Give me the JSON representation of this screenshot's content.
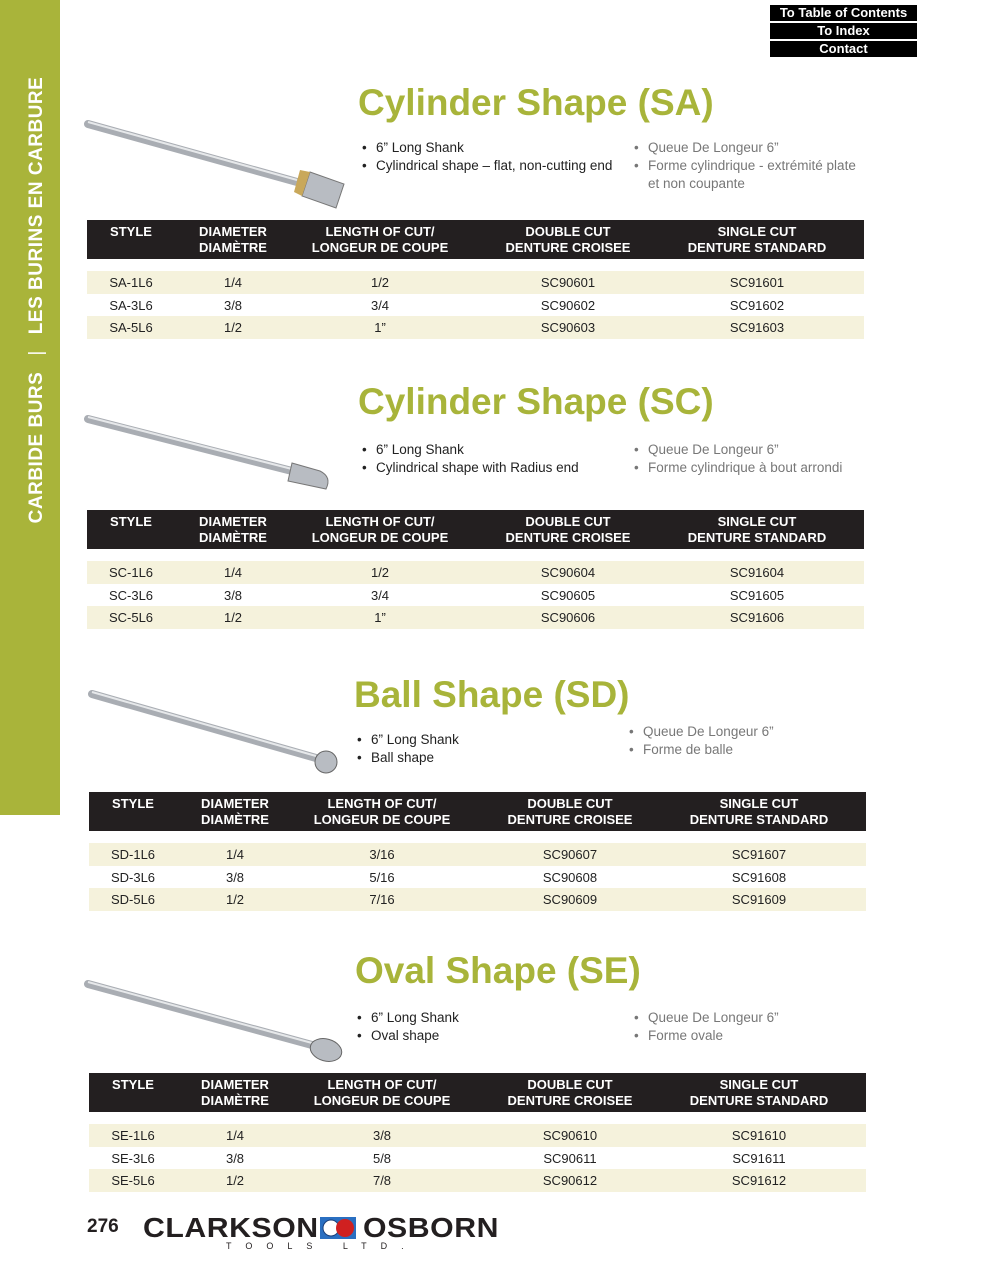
{
  "sidebar": {
    "category_en": "CARBIDE BURS",
    "separator": "|",
    "category_fr": "LES BURINS EN CARBURE",
    "color": "#a9b43a"
  },
  "nav": {
    "toc": "To Table of Contents",
    "index": "To Index",
    "contact": "Contact"
  },
  "headers": [
    "STYLE",
    "DIAMETER\nDIAMÈTRE",
    "LENGTH OF CUT/\nLONGEUR DE COUPE",
    "DOUBLE CUT\nDENTURE CROISEE",
    "SINGLE CUT\nDENTURE STANDARD"
  ],
  "sections": [
    {
      "title": "Cylinder Shape (SA)",
      "bullets_en": [
        "6” Long Shank",
        "Cylindrical shape – flat, non-cutting end"
      ],
      "bullets_fr": [
        "Queue De Longeur 6”",
        "Forme cylindrique - extrémité plate et non coupante"
      ],
      "shape": "cylinder",
      "rows": [
        [
          "SA-1L6",
          "1/4",
          "1/2",
          "SC90601",
          "SC91601"
        ],
        [
          "SA-3L6",
          "3/8",
          "3/4",
          "SC90602",
          "SC91602"
        ],
        [
          "SA-5L6",
          "1/2",
          "1”",
          "SC90603",
          "SC91603"
        ]
      ]
    },
    {
      "title": "Cylinder Shape (SC)",
      "bullets_en": [
        "6” Long Shank",
        "Cylindrical shape with Radius end"
      ],
      "bullets_fr": [
        "Queue De Longeur 6”",
        "Forme cylindrique à bout arrondi"
      ],
      "shape": "radius",
      "rows": [
        [
          "SC-1L6",
          "1/4",
          "1/2",
          "SC90604",
          "SC91604"
        ],
        [
          "SC-3L6",
          "3/8",
          "3/4",
          "SC90605",
          "SC91605"
        ],
        [
          "SC-5L6",
          "1/2",
          "1”",
          "SC90606",
          "SC91606"
        ]
      ]
    },
    {
      "title": "Ball Shape (SD)",
      "bullets_en": [
        "6” Long Shank",
        "Ball shape"
      ],
      "bullets_fr": [
        "Queue De Longeur 6”",
        "Forme de balle"
      ],
      "shape": "ball",
      "rows": [
        [
          "SD-1L6",
          "1/4",
          "3/16",
          "SC90607",
          "SC91607"
        ],
        [
          "SD-3L6",
          "3/8",
          "5/16",
          "SC90608",
          "SC91608"
        ],
        [
          "SD-5L6",
          "1/2",
          "7/16",
          "SC90609",
          "SC91609"
        ]
      ]
    },
    {
      "title": "Oval Shape (SE)",
      "bullets_en": [
        "6” Long Shank",
        "Oval shape"
      ],
      "bullets_fr": [
        "Queue De Longeur 6”",
        "Forme ovale"
      ],
      "shape": "oval",
      "rows": [
        [
          "SE-1L6",
          "1/4",
          "3/8",
          "SC90610",
          "SC91610"
        ],
        [
          "SE-3L6",
          "3/8",
          "5/8",
          "SC90611",
          "SC91611"
        ],
        [
          "SE-5L6",
          "1/2",
          "7/8",
          "SC90612",
          "SC91612"
        ]
      ]
    }
  ],
  "footer": {
    "page_number": "276",
    "brand_left": "CLARKSON",
    "brand_right": "OSBORN",
    "brand_sub": "TOOLS LTD."
  },
  "colors": {
    "title": "#a8b43a",
    "header_bg": "#231f20",
    "row_alt": "#f5f2dc"
  }
}
